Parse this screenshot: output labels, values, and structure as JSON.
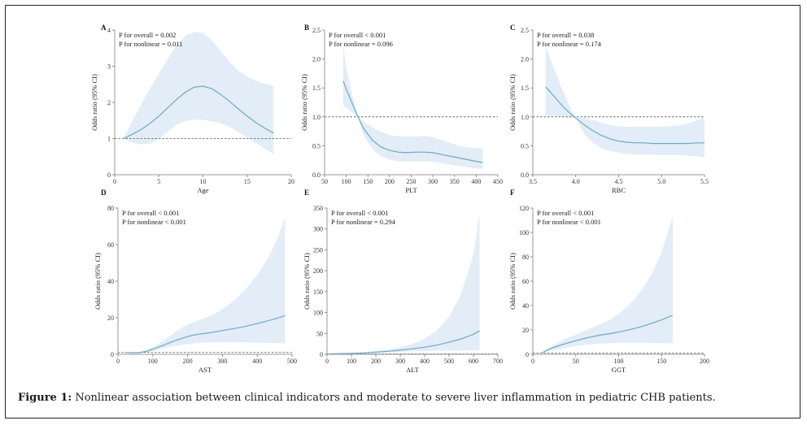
{
  "caption": {
    "label": "Figure 1:",
    "text": " Nonlinear association between clinical indicators and moderate to severe liver inflammation in pediatric CHB patients."
  },
  "style": {
    "band_color": "#e3edf7",
    "line_color": "#6aaac4",
    "axis_color": "#555555",
    "ref_line_color": "#555555"
  },
  "chart_data": [
    {
      "panel": "A",
      "type": "line",
      "xlabel": "Age",
      "ylabel": "Odds ratio (95% CI)",
      "xlim": [
        0,
        20
      ],
      "ylim": [
        0,
        4
      ],
      "xticks": [
        0,
        5,
        10,
        15,
        20
      ],
      "yticks": [
        0,
        1,
        2,
        3,
        4
      ],
      "xtick_labels": [
        "0",
        "5",
        "10",
        "15",
        "20"
      ],
      "ytick_labels": [
        "0",
        "1",
        "2",
        "3",
        "4"
      ],
      "reference_line": 1,
      "annotations": [
        "P for overall = 0.002",
        "P for nonlinear = 0.011"
      ],
      "x": [
        1,
        2,
        3,
        4,
        5,
        6,
        7,
        8,
        9,
        10,
        11,
        12,
        13,
        14,
        15,
        16,
        17,
        18
      ],
      "y": [
        1.0,
        1.12,
        1.25,
        1.42,
        1.62,
        1.85,
        2.08,
        2.28,
        2.42,
        2.45,
        2.38,
        2.22,
        2.03,
        1.82,
        1.62,
        1.44,
        1.29,
        1.15
      ],
      "lower": [
        1.0,
        0.88,
        0.84,
        0.86,
        0.98,
        1.18,
        1.38,
        1.48,
        1.52,
        1.52,
        1.48,
        1.42,
        1.32,
        1.18,
        1.02,
        0.87,
        0.72,
        0.57
      ],
      "upper": [
        1.0,
        1.5,
        1.95,
        2.38,
        2.8,
        3.2,
        3.58,
        3.85,
        3.95,
        3.92,
        3.72,
        3.42,
        3.12,
        2.88,
        2.72,
        2.6,
        2.52,
        2.45
      ]
    },
    {
      "panel": "B",
      "type": "line",
      "xlabel": "PLT",
      "ylabel": "Odds ratio (95% CI)",
      "xlim": [
        50,
        450
      ],
      "ylim": [
        0,
        2.5
      ],
      "xticks": [
        50,
        100,
        150,
        200,
        250,
        300,
        350,
        400,
        450
      ],
      "yticks": [
        0,
        0.5,
        1.0,
        1.5,
        2.0,
        2.5
      ],
      "xtick_labels": [
        "50",
        "100",
        "150",
        "200",
        "250",
        "300",
        "350",
        "400",
        "450"
      ],
      "ytick_labels": [
        "0.0",
        "0.5",
        "1.0",
        "1.5",
        "2.0",
        "2.5"
      ],
      "reference_line": 1,
      "annotations": [
        "P for overall < 0.001",
        "P for nonlinear = 0.096"
      ],
      "x": [
        93,
        100,
        110,
        120,
        127,
        140,
        160,
        180,
        200,
        220,
        240,
        260,
        280,
        300,
        320,
        340,
        360,
        380,
        400,
        415
      ],
      "y": [
        1.62,
        1.48,
        1.3,
        1.12,
        1.0,
        0.8,
        0.6,
        0.48,
        0.42,
        0.39,
        0.38,
        0.39,
        0.39,
        0.38,
        0.35,
        0.32,
        0.29,
        0.26,
        0.23,
        0.21
      ],
      "lower": [
        1.2,
        1.16,
        1.1,
        1.04,
        1.0,
        0.68,
        0.45,
        0.32,
        0.26,
        0.23,
        0.23,
        0.23,
        0.23,
        0.22,
        0.2,
        0.17,
        0.15,
        0.13,
        0.11,
        0.1
      ],
      "upper": [
        2.25,
        1.85,
        1.5,
        1.22,
        1.0,
        0.92,
        0.82,
        0.74,
        0.69,
        0.66,
        0.66,
        0.66,
        0.67,
        0.65,
        0.6,
        0.55,
        0.5,
        0.47,
        0.46,
        0.45
      ]
    },
    {
      "panel": "C",
      "type": "line",
      "xlabel": "RBC",
      "ylabel": "Odds ratio (95% CI)",
      "xlim": [
        3.5,
        5.5
      ],
      "ylim": [
        0,
        2.5
      ],
      "xticks": [
        3.5,
        4.0,
        4.5,
        5.0,
        5.5
      ],
      "yticks": [
        0,
        0.5,
        1.0,
        1.5,
        2.0,
        2.5
      ],
      "xtick_labels": [
        "3.5",
        "4.0",
        "4.5",
        "5.0",
        "5.5"
      ],
      "ytick_labels": [
        "0.0",
        "0.5",
        "1.0",
        "1.5",
        "2.0",
        "2.5"
      ],
      "reference_line": 1,
      "annotations": [
        "P for overall = 0.038",
        "P for nonlinear = 0.174"
      ],
      "x": [
        3.65,
        3.75,
        3.85,
        3.95,
        4.0,
        4.1,
        4.2,
        4.3,
        4.4,
        4.5,
        4.6,
        4.7,
        4.8,
        4.9,
        5.0,
        5.1,
        5.2,
        5.3,
        5.4,
        5.5
      ],
      "y": [
        1.52,
        1.35,
        1.18,
        1.04,
        0.98,
        0.86,
        0.76,
        0.68,
        0.62,
        0.58,
        0.56,
        0.55,
        0.55,
        0.54,
        0.54,
        0.54,
        0.54,
        0.54,
        0.55,
        0.55
      ],
      "lower": [
        1.02,
        1.02,
        1.0,
        1.0,
        0.98,
        0.7,
        0.55,
        0.46,
        0.41,
        0.38,
        0.36,
        0.35,
        0.35,
        0.34,
        0.34,
        0.34,
        0.34,
        0.33,
        0.32,
        0.3
      ],
      "upper": [
        2.22,
        1.82,
        1.45,
        1.12,
        0.98,
        0.98,
        0.95,
        0.9,
        0.86,
        0.84,
        0.83,
        0.83,
        0.83,
        0.83,
        0.83,
        0.84,
        0.85,
        0.88,
        0.93,
        0.99
      ]
    },
    {
      "panel": "D",
      "type": "line",
      "xlabel": "AST",
      "ylabel": "Odds ratio (95% CI)",
      "xlim": [
        0,
        500
      ],
      "ylim": [
        0,
        80
      ],
      "xticks": [
        0,
        100,
        200,
        300,
        400,
        500
      ],
      "yticks": [
        0,
        20,
        40,
        60,
        80
      ],
      "xtick_labels": [
        "0",
        "100",
        "200",
        "300",
        "400",
        "500"
      ],
      "ytick_labels": [
        "0",
        "20",
        "40",
        "60",
        "80"
      ],
      "reference_line": 1,
      "annotations": [
        "P for overall < 0.001",
        "P for nonlinear < 0.001"
      ],
      "x": [
        20,
        40,
        60,
        80,
        100,
        120,
        140,
        160,
        180,
        200,
        220,
        240,
        260,
        280,
        300,
        320,
        340,
        360,
        380,
        400,
        420,
        440,
        460,
        480
      ],
      "y": [
        1,
        0.8,
        0.9,
        1.5,
        2.8,
        4.2,
        5.7,
        7.2,
        8.5,
        9.7,
        10.6,
        11.2,
        11.7,
        12.3,
        13.0,
        13.7,
        14.3,
        15.0,
        15.9,
        16.8,
        17.8,
        18.8,
        19.9,
        21.2
      ],
      "lower": [
        0.9,
        0.6,
        0.7,
        1.0,
        1.8,
        2.7,
        3.6,
        4.4,
        5.0,
        5.6,
        6.0,
        6.3,
        6.5,
        6.6,
        6.6,
        6.6,
        6.6,
        6.6,
        6.5,
        6.4,
        6.3,
        6.2,
        6.1,
        6.0
      ],
      "upper": [
        1.1,
        1.0,
        1.2,
        2.2,
        4.0,
        6.2,
        8.8,
        11.5,
        14.0,
        16.3,
        17.8,
        19.2,
        20.6,
        22.4,
        24.8,
        27.5,
        30.6,
        34.2,
        38.5,
        43.4,
        49.2,
        55.8,
        64.0,
        75.0
      ]
    },
    {
      "panel": "E",
      "type": "line",
      "xlabel": "ALT",
      "ylabel": "Odds ratio (95% CI)",
      "xlim": [
        0,
        700
      ],
      "ylim": [
        0,
        350
      ],
      "xticks": [
        0,
        100,
        200,
        300,
        400,
        500,
        600,
        700
      ],
      "yticks": [
        0,
        50,
        100,
        150,
        200,
        250,
        300,
        350
      ],
      "xtick_labels": [
        "0",
        "100",
        "200",
        "300",
        "400",
        "500",
        "600",
        "700"
      ],
      "ytick_labels": [
        "0",
        "50",
        "100",
        "150",
        "200",
        "250",
        "300",
        "350"
      ],
      "reference_line": 1,
      "annotations": [
        "P for overall < 0.001",
        "P for nonlinear = 0.294"
      ],
      "x": [
        10,
        50,
        100,
        150,
        200,
        250,
        300,
        350,
        400,
        450,
        500,
        550,
        600,
        625
      ],
      "y": [
        1,
        1.5,
        2.2,
        3.3,
        5.0,
        7.2,
        10.0,
        13.0,
        17.0,
        22.0,
        29.0,
        37.0,
        48.0,
        56.0
      ],
      "lower": [
        0.9,
        1.1,
        1.5,
        2.2,
        3.2,
        4.5,
        6.0,
        7.2,
        8.0,
        8.6,
        9.0,
        9.3,
        9.5,
        9.6
      ],
      "upper": [
        1.1,
        2.0,
        3.2,
        5.0,
        7.8,
        11.5,
        17.0,
        25.0,
        37.0,
        57.0,
        90.0,
        145.0,
        240.0,
        338.0
      ]
    },
    {
      "panel": "F",
      "type": "line",
      "xlabel": "GGT",
      "ylabel": "Odds ratio (95% CI)",
      "xlim": [
        0,
        200
      ],
      "ylim": [
        0,
        120
      ],
      "xticks": [
        0,
        50,
        100,
        150,
        200
      ],
      "yticks": [
        0,
        20,
        40,
        60,
        80,
        100,
        120
      ],
      "xtick_labels": [
        "0",
        "50",
        "100",
        "150",
        "200"
      ],
      "ytick_labels": [
        "0",
        "20",
        "40",
        "60",
        "80",
        "100",
        "120"
      ],
      "reference_line": 1,
      "annotations": [
        "P for overall < 0.001",
        "P for nonlinear < 0.001"
      ],
      "x": [
        10,
        20,
        30,
        40,
        50,
        60,
        70,
        80,
        90,
        100,
        110,
        120,
        130,
        140,
        150,
        163
      ],
      "y": [
        1,
        4.5,
        7.0,
        9.2,
        11.2,
        13.0,
        14.6,
        15.9,
        17.0,
        18.3,
        19.8,
        21.5,
        23.5,
        25.8,
        28.3,
        32.0
      ],
      "lower": [
        0.9,
        2.8,
        4.3,
        5.6,
        6.7,
        7.6,
        8.3,
        8.8,
        9.2,
        9.4,
        9.5,
        9.5,
        9.4,
        9.3,
        9.2,
        9.0
      ],
      "upper": [
        1.1,
        6.2,
        9.8,
        13.2,
        16.2,
        19.2,
        22.2,
        25.2,
        28.5,
        33.0,
        39.0,
        46.5,
        56.0,
        68.0,
        84.0,
        113.0
      ]
    }
  ]
}
